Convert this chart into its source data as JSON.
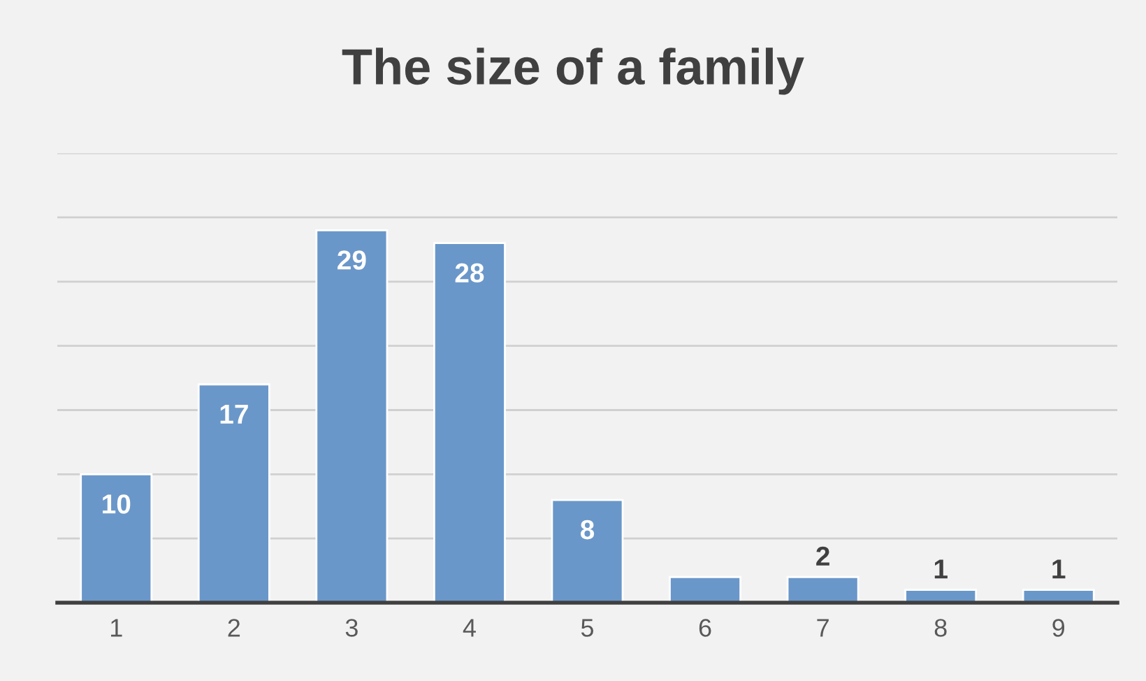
{
  "chart_data": {
    "type": "bar",
    "title": "The size of a family",
    "categories": [
      "1",
      "2",
      "3",
      "4",
      "5",
      "6",
      "7",
      "8",
      "9"
    ],
    "values": [
      10,
      17,
      29,
      28,
      8,
      2,
      2,
      1,
      1
    ],
    "value_labels": [
      "10",
      "17",
      "29",
      "28",
      "8",
      null,
      "2",
      "1",
      "1"
    ],
    "color": "#6a97c9",
    "ylim": [
      0,
      35
    ],
    "yticks": [
      {
        "value": 0,
        "label": null
      },
      {
        "value": 5,
        "label": null
      },
      {
        "value": 10,
        "label": null
      },
      {
        "value": 15,
        "label": null
      },
      {
        "value": 20,
        "label": null
      },
      {
        "value": 25,
        "label": null
      },
      {
        "value": 30,
        "label": null
      },
      {
        "value": 35,
        "label": null
      }
    ],
    "tick_labels": "x",
    "grid": "y"
  }
}
